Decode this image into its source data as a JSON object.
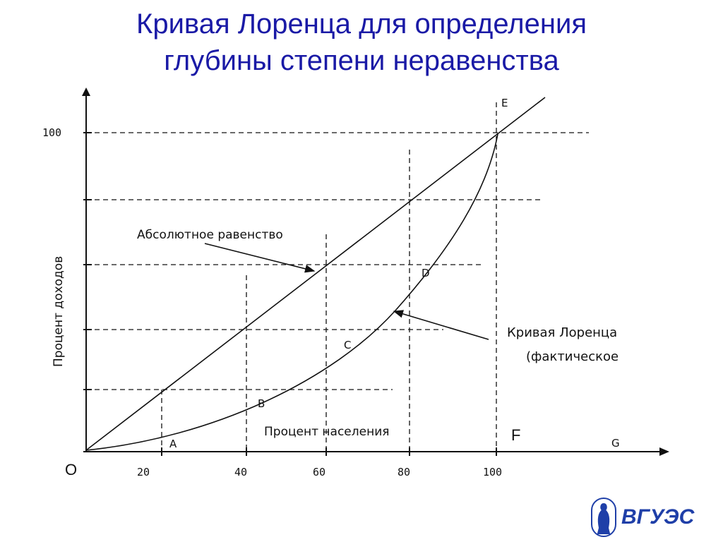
{
  "title": {
    "line1": "Кривая Лоренца для определения",
    "line2": "глубины степени неравенства"
  },
  "diagram": {
    "y_axis_label": "Процент  доходов",
    "x_axis_label": "Процент населения",
    "y_tick_top": "100",
    "x_ticks": [
      "20",
      "40",
      "60",
      "80",
      "100"
    ],
    "origin_label": "O",
    "equality_label": "Абсолютное равенство",
    "lorenz_label_1": "Кривая Лоренца",
    "lorenz_label_2": "(фактическое",
    "points": {
      "A": "A",
      "B": "B",
      "C": "C",
      "D": "D",
      "E": "E",
      "F": "F",
      "G": "G"
    }
  },
  "logo": {
    "text": "ВГУЭС",
    "color": "#1f3fa8"
  },
  "colors": {
    "title": "#1a1aa6",
    "lines": "#111111"
  }
}
